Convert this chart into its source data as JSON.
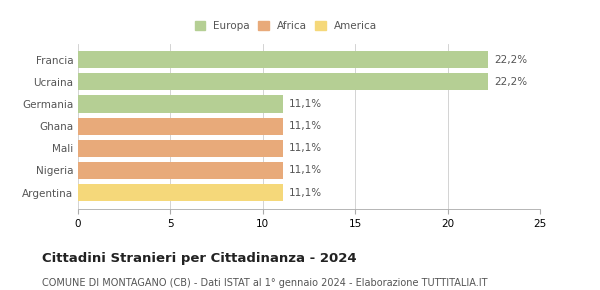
{
  "categories": [
    "Francia",
    "Ucraina",
    "Germania",
    "Ghana",
    "Mali",
    "Nigeria",
    "Argentina"
  ],
  "values": [
    22.2,
    22.2,
    11.1,
    11.1,
    11.1,
    11.1,
    11.1
  ],
  "bar_colors": [
    "#b5cf94",
    "#b5cf94",
    "#b5cf94",
    "#e8aa7a",
    "#e8aa7a",
    "#e8aa7a",
    "#f5d87a"
  ],
  "labels": [
    "22,2%",
    "22,2%",
    "11,1%",
    "11,1%",
    "11,1%",
    "11,1%",
    "11,1%"
  ],
  "legend": [
    {
      "label": "Europa",
      "color": "#b5cf94"
    },
    {
      "label": "Africa",
      "color": "#e8aa7a"
    },
    {
      "label": "America",
      "color": "#f5d87a"
    }
  ],
  "xlim": [
    0,
    25
  ],
  "xticks": [
    0,
    5,
    10,
    15,
    20,
    25
  ],
  "title": "Cittadini Stranieri per Cittadinanza - 2024",
  "subtitle": "COMUNE DI MONTAGANO (CB) - Dati ISTAT al 1° gennaio 2024 - Elaborazione TUTTITALIA.IT",
  "background_color": "#ffffff",
  "grid_color": "#cccccc",
  "label_fontsize": 7.5,
  "bar_label_fontsize": 7.5,
  "title_fontsize": 9.5,
  "subtitle_fontsize": 7.0
}
